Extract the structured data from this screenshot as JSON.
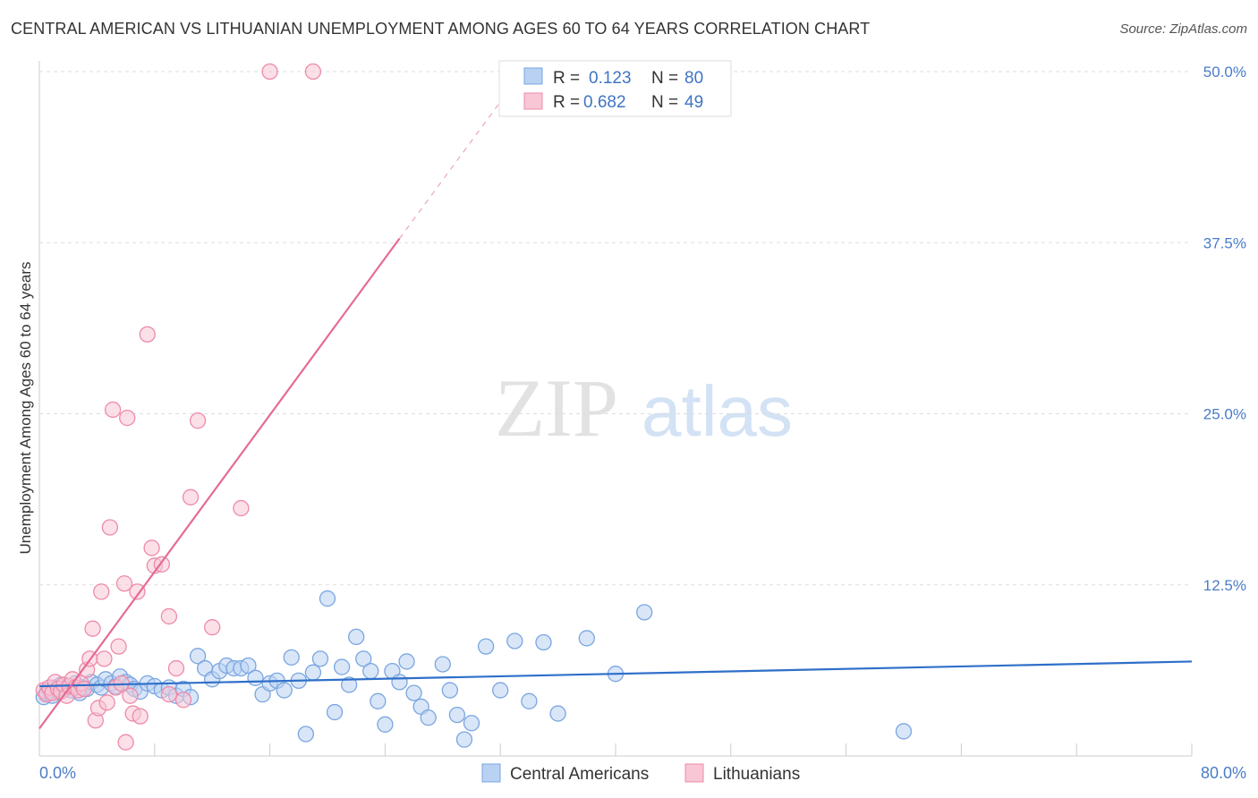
{
  "chart_data": {
    "type": "scatter",
    "title": "CENTRAL AMERICAN VS LITHUANIAN UNEMPLOYMENT AMONG AGES 60 TO 64 YEARS CORRELATION CHART",
    "source": "Source: ZipAtlas.com",
    "watermark": {
      "zip": "ZIP",
      "atlas": "atlas"
    },
    "ylabel": "Unemployment Among Ages 60 to 64 years",
    "xlim": [
      0,
      80
    ],
    "ylim": [
      0,
      50
    ],
    "x_ticks": [
      {
        "value": 0,
        "label": "0.0%"
      },
      {
        "value": 80,
        "label": "80.0%"
      }
    ],
    "y_ticks": [
      {
        "value": 12.5,
        "label": "12.5%"
      },
      {
        "value": 25,
        "label": "25.0%"
      },
      {
        "value": 37.5,
        "label": "37.5%"
      },
      {
        "value": 50,
        "label": "50.0%"
      }
    ],
    "legend_top": [
      {
        "r_label": "R =",
        "r_value": "0.123",
        "n_label": "N =",
        "n_value": "80"
      },
      {
        "r_label": "R =",
        "r_value": "0.682",
        "n_label": "N =",
        "n_value": "49"
      }
    ],
    "series": [
      {
        "name": "Central Americans",
        "color": "#7aa6e0",
        "fill": "#b9d1f2",
        "line_color": "#2f6fc9",
        "trend": {
          "x": [
            0,
            80
          ],
          "y": [
            5.1,
            6.9
          ]
        },
        "points": [
          [
            0.3,
            4.3
          ],
          [
            0.5,
            4.6
          ],
          [
            0.7,
            4.8
          ],
          [
            0.9,
            4.4
          ],
          [
            1.1,
            5.0
          ],
          [
            1.3,
            4.7
          ],
          [
            1.5,
            5.2
          ],
          [
            1.8,
            4.9
          ],
          [
            2.0,
            5.1
          ],
          [
            2.2,
            4.8
          ],
          [
            2.5,
            5.3
          ],
          [
            2.8,
            4.6
          ],
          [
            3.0,
            5.0
          ],
          [
            3.3,
            4.9
          ],
          [
            3.6,
            5.4
          ],
          [
            4.0,
            5.2
          ],
          [
            4.3,
            5.0
          ],
          [
            4.6,
            5.6
          ],
          [
            5.0,
            5.3
          ],
          [
            5.3,
            5.1
          ],
          [
            5.6,
            5.8
          ],
          [
            6.0,
            5.4
          ],
          [
            6.3,
            5.2
          ],
          [
            6.6,
            4.9
          ],
          [
            7.0,
            4.7
          ],
          [
            7.5,
            5.3
          ],
          [
            8.0,
            5.1
          ],
          [
            8.5,
            4.8
          ],
          [
            9.0,
            5.0
          ],
          [
            9.5,
            4.4
          ],
          [
            10.0,
            4.9
          ],
          [
            10.5,
            4.3
          ],
          [
            11.0,
            7.3
          ],
          [
            11.5,
            6.4
          ],
          [
            12.0,
            5.6
          ],
          [
            12.5,
            6.2
          ],
          [
            13.0,
            6.6
          ],
          [
            13.5,
            6.4
          ],
          [
            14.0,
            6.4
          ],
          [
            14.5,
            6.6
          ],
          [
            15.0,
            5.7
          ],
          [
            15.5,
            4.5
          ],
          [
            16.0,
            5.3
          ],
          [
            16.5,
            5.5
          ],
          [
            17.0,
            4.8
          ],
          [
            17.5,
            7.2
          ],
          [
            18.0,
            5.5
          ],
          [
            18.5,
            1.6
          ],
          [
            19.0,
            6.1
          ],
          [
            19.5,
            7.1
          ],
          [
            20.0,
            11.5
          ],
          [
            20.5,
            3.2
          ],
          [
            21.0,
            6.5
          ],
          [
            21.5,
            5.2
          ],
          [
            22.0,
            8.7
          ],
          [
            22.5,
            7.1
          ],
          [
            23.0,
            6.2
          ],
          [
            23.5,
            4.0
          ],
          [
            24.0,
            2.3
          ],
          [
            24.5,
            6.2
          ],
          [
            25.0,
            5.4
          ],
          [
            25.5,
            6.9
          ],
          [
            26.0,
            4.6
          ],
          [
            26.5,
            3.6
          ],
          [
            27.0,
            2.8
          ],
          [
            28.0,
            6.7
          ],
          [
            28.5,
            4.8
          ],
          [
            29.0,
            3.0
          ],
          [
            29.5,
            1.2
          ],
          [
            30.0,
            2.4
          ],
          [
            31.0,
            8.0
          ],
          [
            32.0,
            4.8
          ],
          [
            33.0,
            8.4
          ],
          [
            34.0,
            4.0
          ],
          [
            35.0,
            8.3
          ],
          [
            36.0,
            3.1
          ],
          [
            38.0,
            8.6
          ],
          [
            40.0,
            6.0
          ],
          [
            42.0,
            10.5
          ],
          [
            60.0,
            1.8
          ]
        ]
      },
      {
        "name": "Lithuanians",
        "color": "#ee8aaa",
        "fill": "#f8c6d5",
        "line_color": "#e56b94",
        "trend": {
          "x": [
            0,
            25
          ],
          "y": [
            2.0,
            37.8
          ]
        },
        "trend_dashed": {
          "x": [
            25,
            32.5
          ],
          "y": [
            37.8,
            48.5
          ]
        },
        "points": [
          [
            0.3,
            4.8
          ],
          [
            0.5,
            4.5
          ],
          [
            0.7,
            5.0
          ],
          [
            0.9,
            4.6
          ],
          [
            1.1,
            5.4
          ],
          [
            1.3,
            4.9
          ],
          [
            1.5,
            4.7
          ],
          [
            1.7,
            5.2
          ],
          [
            1.9,
            4.4
          ],
          [
            2.1,
            5.1
          ],
          [
            2.3,
            5.6
          ],
          [
            2.5,
            5.0
          ],
          [
            2.7,
            4.8
          ],
          [
            2.9,
            5.3
          ],
          [
            3.1,
            4.9
          ],
          [
            3.3,
            6.3
          ],
          [
            3.5,
            7.1
          ],
          [
            3.7,
            9.3
          ],
          [
            3.9,
            2.6
          ],
          [
            4.1,
            3.5
          ],
          [
            4.3,
            12.0
          ],
          [
            4.5,
            7.1
          ],
          [
            4.7,
            3.9
          ],
          [
            4.9,
            16.7
          ],
          [
            5.1,
            25.3
          ],
          [
            5.3,
            5.0
          ],
          [
            5.5,
            8.0
          ],
          [
            5.7,
            5.3
          ],
          [
            5.9,
            12.6
          ],
          [
            6.1,
            24.7
          ],
          [
            6.3,
            4.4
          ],
          [
            6.5,
            3.1
          ],
          [
            6.8,
            12.0
          ],
          [
            7.0,
            2.9
          ],
          [
            7.5,
            30.8
          ],
          [
            7.8,
            15.2
          ],
          [
            8.0,
            13.9
          ],
          [
            8.5,
            14.0
          ],
          [
            9.0,
            10.2
          ],
          [
            9.5,
            6.4
          ],
          [
            10.0,
            4.1
          ],
          [
            10.5,
            18.9
          ],
          [
            11.0,
            24.5
          ],
          [
            12.0,
            9.4
          ],
          [
            14.0,
            18.1
          ],
          [
            16.0,
            52.0
          ],
          [
            19.0,
            50.2
          ],
          [
            6.0,
            1.0
          ],
          [
            9.0,
            4.5
          ]
        ]
      }
    ]
  }
}
